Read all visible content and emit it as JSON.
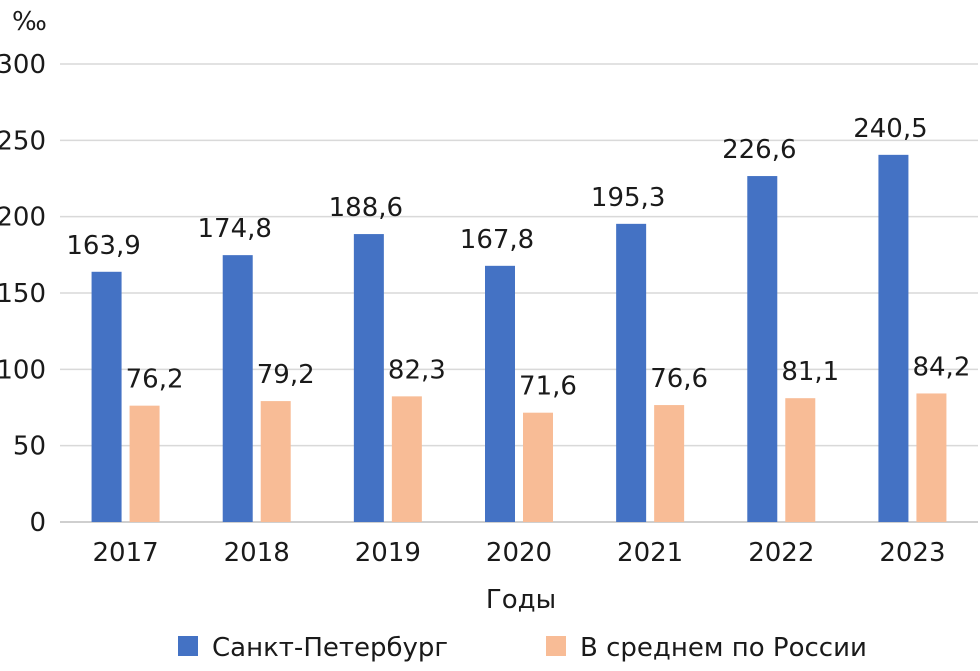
{
  "chart_data": {
    "type": "bar",
    "title": "",
    "unit_label": "‰",
    "xlabel": "Годы",
    "ylabel": "",
    "ylim": [
      0,
      300
    ],
    "yticks": [
      0,
      50,
      100,
      150,
      200,
      250,
      300
    ],
    "ytick_labels": [
      "0",
      "50",
      "100",
      "150",
      "200",
      "250",
      "300"
    ],
    "grid": true,
    "legend_position": "bottom",
    "categories": [
      "2017",
      "2018",
      "2019",
      "2020",
      "2021",
      "2022",
      "2023"
    ],
    "series": [
      {
        "name": "Санкт-Петербург",
        "color": "#4472c4",
        "values": [
          163.9,
          174.8,
          188.6,
          167.8,
          195.3,
          226.6,
          240.5
        ],
        "labels": [
          "163,9",
          "174,8",
          "188,6",
          "167,8",
          "195,3",
          "226,6",
          "240,5"
        ]
      },
      {
        "name": "В среднем по России",
        "color": "#f8bc96",
        "values": [
          76.2,
          79.2,
          82.3,
          71.6,
          76.6,
          81.1,
          84.2
        ],
        "labels": [
          "76,2",
          "79,2",
          "82,3",
          "71,6",
          "76,6",
          "81,1",
          "84,2"
        ]
      }
    ]
  }
}
